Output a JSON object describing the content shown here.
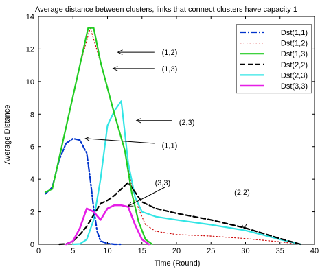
{
  "chart_data": {
    "type": "line",
    "title": "Average distance between clusters, links that connect clusters have capacity 1",
    "xlabel": "Time (Round)",
    "ylabel": "Average Distance",
    "xlim": [
      0,
      40
    ],
    "ylim": [
      0,
      14
    ],
    "xticks": [
      0,
      5,
      10,
      15,
      20,
      25,
      30,
      35,
      40
    ],
    "yticks": [
      0,
      2,
      4,
      6,
      8,
      10,
      12,
      14
    ],
    "legend_position": "top-right",
    "series": [
      {
        "name": "Dst(1,1)",
        "color": "#0033cc",
        "dash": "dashdot",
        "width": 2.2,
        "x": [
          1,
          2,
          3,
          4,
          5,
          6,
          7,
          7.5,
          8,
          8.5,
          9,
          10,
          11,
          12
        ],
        "y": [
          3.1,
          3.5,
          5.2,
          6.2,
          6.5,
          6.4,
          5.6,
          4.0,
          2.2,
          0.8,
          0.2,
          0.05,
          0,
          0
        ]
      },
      {
        "name": "Dst(1,2)",
        "color": "#cc0000",
        "dash": "dotted",
        "width": 1.2,
        "x": [
          1,
          2,
          4,
          6,
          7.5,
          9,
          11,
          12.5,
          13.5,
          14.5,
          15.5,
          17,
          20,
          25,
          30,
          35,
          38
        ],
        "y": [
          3.2,
          3.4,
          7.2,
          11.0,
          13.3,
          11.2,
          8.0,
          5.8,
          3.6,
          2.2,
          1.2,
          0.8,
          0.6,
          0.5,
          0.35,
          0.15,
          0
        ]
      },
      {
        "name": "Dst(1,3)",
        "color": "#22cc22",
        "dash": "solid",
        "width": 2.2,
        "x": [
          1,
          2,
          4,
          6,
          7.2,
          8,
          9,
          11,
          12.5,
          13.5,
          14.5,
          15.5,
          16.5
        ],
        "y": [
          3.2,
          3.4,
          7.2,
          11.0,
          13.3,
          13.3,
          11.2,
          8.0,
          5.8,
          3.2,
          1.4,
          0.3,
          0
        ]
      },
      {
        "name": "Dst(2,2)",
        "color": "#000000",
        "dash": "dashed",
        "width": 2.2,
        "x": [
          3,
          4,
          5,
          6,
          7,
          8,
          9,
          10,
          11,
          12,
          13,
          14,
          15,
          17,
          20,
          25,
          30,
          35,
          38
        ],
        "y": [
          0,
          0.02,
          0.2,
          0.6,
          1.1,
          1.8,
          2.5,
          2.7,
          3.0,
          3.4,
          3.8,
          3.2,
          2.6,
          2.2,
          1.9,
          1.5,
          1.0,
          0.35,
          0
        ]
      },
      {
        "name": "Dst(2,3)",
        "color": "#33e5e5",
        "dash": "solid",
        "width": 2.2,
        "x": [
          5,
          6,
          7,
          8,
          9,
          10,
          11,
          12,
          13,
          14,
          15,
          17,
          20,
          25,
          30,
          35,
          38
        ],
        "y": [
          0,
          0.02,
          0.3,
          1.5,
          4.0,
          7.3,
          8.2,
          8.8,
          5.0,
          2.9,
          2.0,
          1.7,
          1.5,
          1.2,
          0.85,
          0.3,
          0
        ]
      },
      {
        "name": "Dst(3,3)",
        "color": "#e61ee6",
        "dash": "solid",
        "width": 2.6,
        "x": [
          4,
          5,
          6,
          7,
          7.5,
          8,
          9,
          10,
          11,
          12,
          13,
          14,
          15,
          16
        ],
        "y": [
          0,
          0.2,
          1.0,
          2.2,
          2.1,
          2.0,
          1.5,
          2.2,
          2.4,
          2.4,
          2.3,
          1.2,
          0.3,
          0
        ]
      }
    ],
    "annotations": [
      {
        "text": "(1,2)",
        "label_at": [
          19,
          11.8
        ],
        "arrow_from": [
          16.8,
          11.8
        ],
        "arrow_to": [
          11.5,
          11.8
        ]
      },
      {
        "text": "(1,3)",
        "label_at": [
          19,
          10.8
        ],
        "arrow_from": [
          16.8,
          10.8
        ],
        "arrow_to": [
          10.8,
          10.8
        ]
      },
      {
        "text": "(2,3)",
        "label_at": [
          21.5,
          7.5
        ],
        "arrow_from": [
          19.3,
          7.6
        ],
        "arrow_to": [
          14.2,
          7.6
        ]
      },
      {
        "text": "(1,1)",
        "label_at": [
          19,
          6.1
        ],
        "arrow_from": [
          16.8,
          6.2
        ],
        "arrow_to": [
          6.8,
          6.5
        ]
      },
      {
        "text": "(3,3)",
        "label_at": [
          18,
          3.8
        ],
        "arrow_from": [
          18.3,
          3.5
        ],
        "arrow_to": [
          13.0,
          2.35
        ]
      },
      {
        "text": "(2,2)",
        "label_at": [
          29.5,
          3.2
        ],
        "arrow_from": [
          29.8,
          2.1
        ],
        "arrow_to": [
          29.8,
          0.95
        ]
      }
    ]
  }
}
